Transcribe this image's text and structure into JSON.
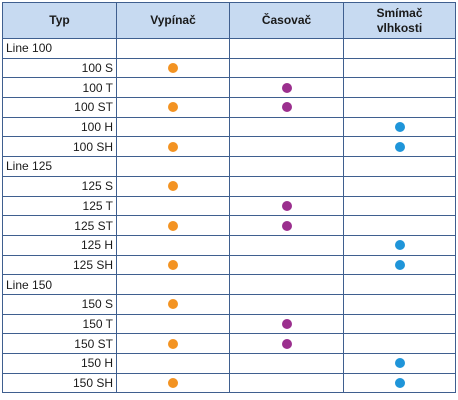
{
  "header": {
    "typ": "Typ",
    "vypinac": "Vypínač",
    "casovac": "Časovač",
    "snimac_line1": "Smímač",
    "snimac_line2": "vlhkosti"
  },
  "colors": {
    "vypinac": "#f39322",
    "casovac": "#9b2f8e",
    "snimac": "#1f95d9",
    "header_bg": "#c7daf1",
    "grid": "#3f5f8f"
  },
  "rows": [
    {
      "kind": "group",
      "label": "Line 100"
    },
    {
      "kind": "model",
      "label": "100 S",
      "vypinac": true,
      "casovac": false,
      "snimac": false
    },
    {
      "kind": "model",
      "label": "100 T",
      "vypinac": false,
      "casovac": true,
      "snimac": false
    },
    {
      "kind": "model",
      "label": "100 ST",
      "vypinac": true,
      "casovac": true,
      "snimac": false
    },
    {
      "kind": "model",
      "label": "100 H",
      "vypinac": false,
      "casovac": false,
      "snimac": true
    },
    {
      "kind": "model",
      "label": "100 SH",
      "vypinac": true,
      "casovac": false,
      "snimac": true
    },
    {
      "kind": "group",
      "label": "Line 125"
    },
    {
      "kind": "model",
      "label": "125 S",
      "vypinac": true,
      "casovac": false,
      "snimac": false
    },
    {
      "kind": "model",
      "label": "125 T",
      "vypinac": false,
      "casovac": true,
      "snimac": false
    },
    {
      "kind": "model",
      "label": "125 ST",
      "vypinac": true,
      "casovac": true,
      "snimac": false
    },
    {
      "kind": "model",
      "label": "125 H",
      "vypinac": false,
      "casovac": false,
      "snimac": true
    },
    {
      "kind": "model",
      "label": "125 SH",
      "vypinac": true,
      "casovac": false,
      "snimac": true
    },
    {
      "kind": "group",
      "label": "Line 150"
    },
    {
      "kind": "model",
      "label": "150 S",
      "vypinac": true,
      "casovac": false,
      "snimac": false
    },
    {
      "kind": "model",
      "label": "150 T",
      "vypinac": false,
      "casovac": true,
      "snimac": false
    },
    {
      "kind": "model",
      "label": "150 ST",
      "vypinac": true,
      "casovac": true,
      "snimac": false
    },
    {
      "kind": "model",
      "label": "150 H",
      "vypinac": false,
      "casovac": false,
      "snimac": true
    },
    {
      "kind": "model",
      "label": "150 SH",
      "vypinac": true,
      "casovac": false,
      "snimac": true
    }
  ]
}
